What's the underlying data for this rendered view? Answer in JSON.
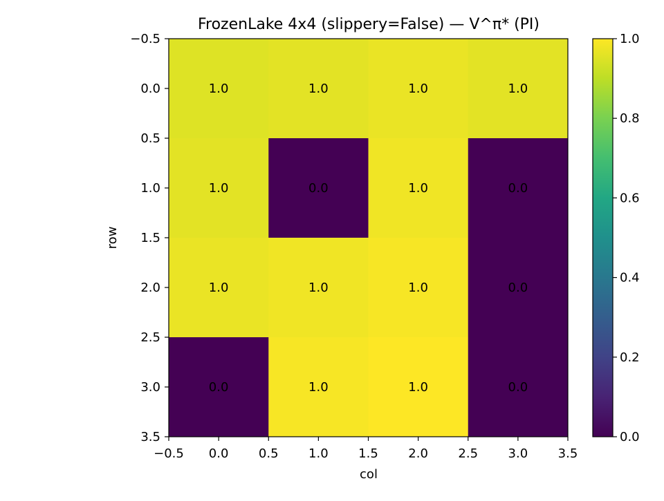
{
  "chart_data": {
    "type": "heatmap",
    "title": "FrozenLake 4x4 (slippery=False) — V^π* (PI)",
    "xlabel": "col",
    "ylabel": "row",
    "xlim": [
      -0.5,
      3.5
    ],
    "ylim": [
      3.5,
      -0.5
    ],
    "xticks": [
      -0.5,
      0.0,
      0.5,
      1.0,
      1.5,
      2.0,
      2.5,
      3.0,
      3.5
    ],
    "yticks": [
      -0.5,
      0.0,
      0.5,
      1.0,
      1.5,
      2.0,
      2.5,
      3.0,
      3.5
    ],
    "xtick_labels": [
      "−0.5",
      "0.0",
      "0.5",
      "1.0",
      "1.5",
      "2.0",
      "2.5",
      "3.0",
      "3.5"
    ],
    "ytick_labels": [
      "−0.5",
      "0.0",
      "0.5",
      "1.0",
      "1.5",
      "2.0",
      "2.5",
      "3.0",
      "3.5"
    ],
    "values": [
      [
        0.951,
        0.96,
        0.97,
        0.96
      ],
      [
        0.96,
        0.0,
        0.98,
        0.0
      ],
      [
        0.97,
        0.98,
        0.99,
        0.0
      ],
      [
        0.0,
        0.99,
        1.0,
        0.0
      ]
    ],
    "cell_labels": [
      [
        "1.0",
        "1.0",
        "1.0",
        "1.0"
      ],
      [
        "1.0",
        "0.0",
        "1.0",
        "0.0"
      ],
      [
        "1.0",
        "1.0",
        "1.0",
        "0.0"
      ],
      [
        "0.0",
        "1.0",
        "1.0",
        "0.0"
      ]
    ],
    "colormap": "viridis",
    "colorbar": {
      "range": [
        0.0,
        1.0
      ],
      "ticks": [
        0.0,
        0.2,
        0.4,
        0.6,
        0.8,
        1.0
      ],
      "tick_labels": [
        "0.0",
        "0.2",
        "0.4",
        "0.6",
        "0.8",
        "1.0"
      ]
    },
    "grid": false,
    "legend": "none"
  }
}
